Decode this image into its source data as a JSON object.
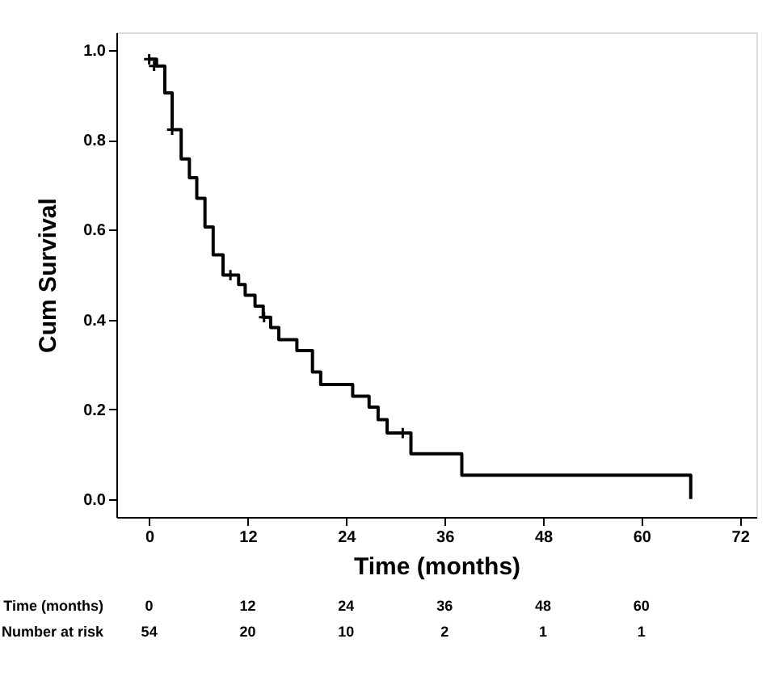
{
  "chart_data": {
    "type": "step",
    "xlabel": "Time (months)",
    "ylabel": "Cum Survival",
    "xlim": [
      -4,
      74
    ],
    "xticks": [
      0,
      12,
      24,
      36,
      48,
      60,
      72
    ],
    "ylim": [
      -0.04,
      1.04
    ],
    "yticks": [
      {
        "value": 0,
        "label": "0.0"
      },
      {
        "value": 0.2,
        "label": "0.2"
      },
      {
        "value": 0.4,
        "label": "0.4"
      },
      {
        "value": 0.6,
        "label": "0.6"
      },
      {
        "value": 0.8,
        "label": "0.8"
      },
      {
        "value": 1,
        "label": "1.0"
      }
    ],
    "grid": false,
    "series": [
      {
        "type": "step",
        "color": "#000000",
        "marker": "none",
        "line_style": "solid",
        "x": [
          0,
          0.9,
          1.9,
          2.8,
          3.9,
          4.9,
          5.8,
          6.8,
          7.8,
          9.0,
          10.9,
          11.7,
          12.9,
          13.9,
          14.8,
          15.8,
          18.0,
          19.9,
          20.9,
          24.8,
          26.8,
          27.9,
          29.0,
          31.9,
          38.1,
          66.0
        ],
        "values": [
          0.98,
          0.965,
          0.905,
          0.823,
          0.758,
          0.716,
          0.67,
          0.606,
          0.544,
          0.499,
          0.478,
          0.454,
          0.43,
          0.405,
          0.382,
          0.355,
          0.331,
          0.283,
          0.255,
          0.229,
          0.205,
          0.177,
          0.147,
          0.101,
          0.053,
          0.0
        ]
      },
      {
        "type": "scatter",
        "color": "#000000",
        "marker": "cross",
        "x": [
          0,
          0.6,
          2.8,
          9.9,
          14.0,
          30.9
        ],
        "values": [
          0.98,
          0.965,
          0.823,
          0.499,
          0.405,
          0.147
        ]
      }
    ],
    "annotations": [
      "Time (months)",
      "0",
      "12",
      "24",
      "36",
      "48",
      "60",
      "Number at risk",
      "54",
      "20",
      "10",
      "2",
      "1",
      "1"
    ]
  }
}
